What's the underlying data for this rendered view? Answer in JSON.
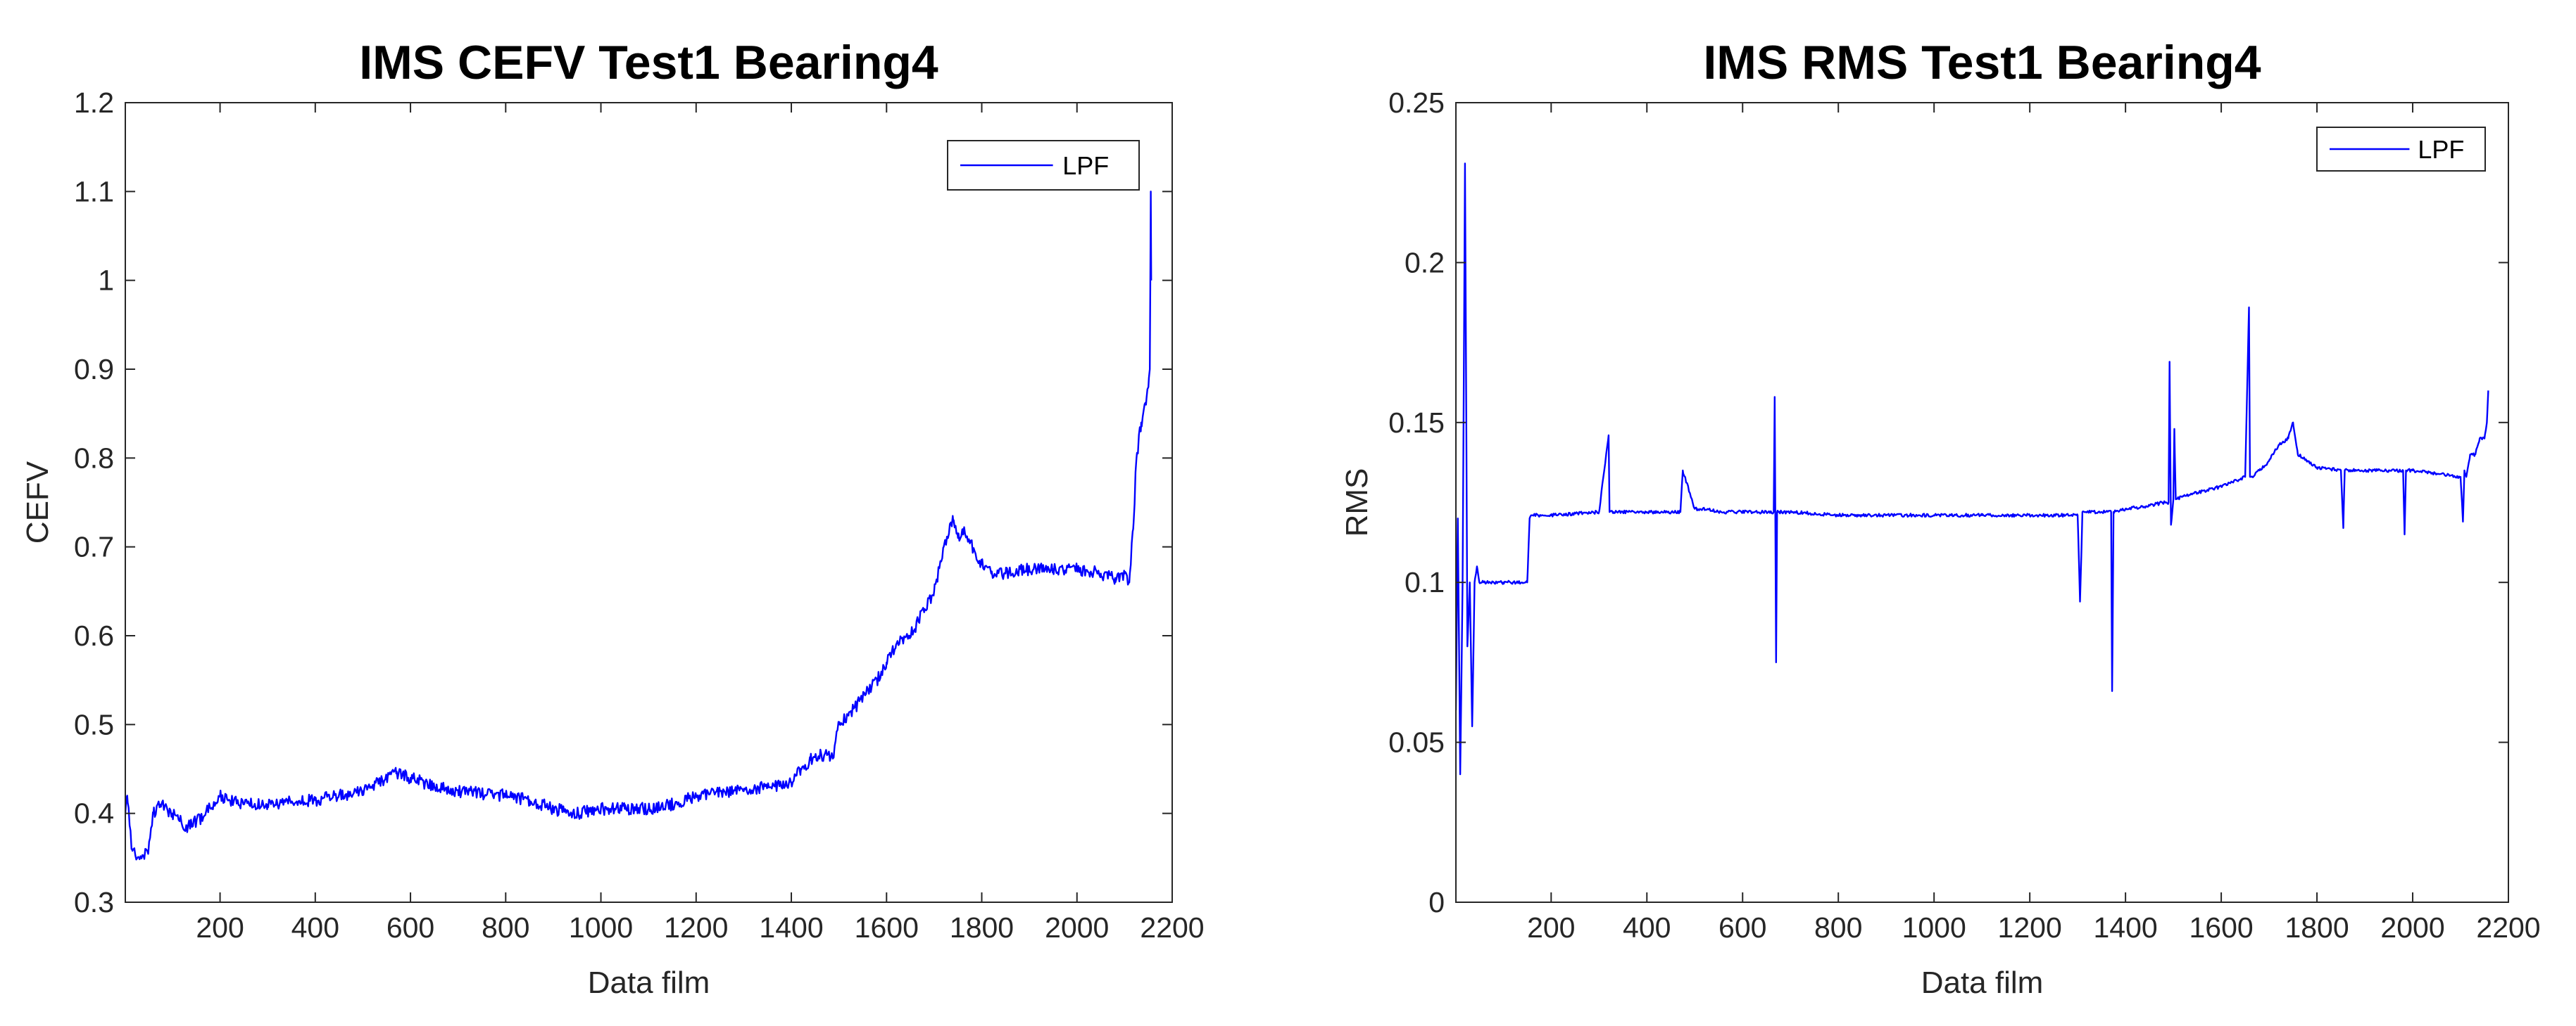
{
  "chart_data": [
    {
      "type": "line",
      "title": "IMS CEFV Test1 Bearing4",
      "xlabel": "Data film",
      "ylabel": "CEFV",
      "xlim": [
        1,
        2200
      ],
      "ylim": [
        0.3,
        1.2
      ],
      "xticks": [
        200,
        400,
        600,
        800,
        1000,
        1200,
        1400,
        1600,
        1800,
        2000,
        2200
      ],
      "yticks": [
        0.3,
        0.4,
        0.5,
        0.6,
        0.7,
        0.8,
        0.9,
        1,
        1.1,
        1.2
      ],
      "xtick_labels": [
        "200",
        "400",
        "600",
        "800",
        "1000",
        "1200",
        "1400",
        "1600",
        "1800",
        "2000",
        "2200"
      ],
      "ytick_labels": [
        "0.3",
        "0.4",
        "0.5",
        "0.6",
        "0.7",
        "0.8",
        "0.9",
        "1",
        "1.1",
        "1.2"
      ],
      "grid": false,
      "legend_position": "top-right",
      "series": [
        {
          "name": "LPF",
          "color": "#0000ff",
          "noise": 0.007,
          "x": [
            1,
            5,
            15,
            30,
            50,
            60,
            75,
            100,
            130,
            160,
            200,
            250,
            300,
            400,
            500,
            570,
            600,
            650,
            700,
            800,
            850,
            900,
            950,
            1000,
            1050,
            1100,
            1150,
            1200,
            1250,
            1300,
            1350,
            1400,
            1420,
            1440,
            1460,
            1480,
            1490,
            1500,
            1520,
            1550,
            1580,
            1600,
            1620,
            1650,
            1680,
            1700,
            1720,
            1740,
            1750,
            1760,
            1780,
            1800,
            1820,
            1850,
            1900,
            1950,
            2000,
            2050,
            2080,
            2100,
            2110,
            2118,
            2125,
            2135,
            2145,
            2150,
            2153,
            2155,
            2156
          ],
          "y": [
            0.4,
            0.42,
            0.36,
            0.35,
            0.36,
            0.4,
            0.41,
            0.4,
            0.385,
            0.395,
            0.42,
            0.41,
            0.41,
            0.415,
            0.425,
            0.445,
            0.44,
            0.43,
            0.425,
            0.42,
            0.415,
            0.405,
            0.4,
            0.405,
            0.405,
            0.405,
            0.41,
            0.42,
            0.425,
            0.425,
            0.43,
            0.435,
            0.45,
            0.46,
            0.465,
            0.465,
            0.47,
            0.5,
            0.51,
            0.53,
            0.55,
            0.57,
            0.59,
            0.6,
            0.63,
            0.65,
            0.7,
            0.73,
            0.71,
            0.72,
            0.7,
            0.68,
            0.67,
            0.67,
            0.675,
            0.675,
            0.675,
            0.67,
            0.665,
            0.67,
            0.66,
            0.72,
            0.8,
            0.84,
            0.86,
            0.88,
            0.9,
            1.1,
            1.0
          ]
        }
      ]
    },
    {
      "type": "line",
      "title": "IMS RMS Test1 Bearing4",
      "xlabel": "Data film",
      "ylabel": "RMS",
      "xlim": [
        1,
        2200
      ],
      "ylim": [
        0,
        0.25
      ],
      "xticks": [
        200,
        400,
        600,
        800,
        1000,
        1200,
        1400,
        1600,
        1800,
        2000,
        2200
      ],
      "yticks": [
        0,
        0.05,
        0.1,
        0.15,
        0.2,
        0.25
      ],
      "xtick_labels": [
        "200",
        "400",
        "600",
        "800",
        "1000",
        "1200",
        "1400",
        "1600",
        "1800",
        "2000",
        "2200"
      ],
      "ytick_labels": [
        "0",
        "0.05",
        "0.1",
        "0.15",
        "0.2",
        "0.25"
      ],
      "grid": false,
      "legend_position": "top-right",
      "series": [
        {
          "name": "LPF",
          "color": "#0000ff",
          "noise": 0.0005,
          "x": [
            1,
            5,
            10,
            15,
            20,
            25,
            30,
            35,
            40,
            45,
            50,
            60,
            80,
            100,
            120,
            150,
            155,
            160,
            200,
            300,
            320,
            322,
            330,
            400,
            470,
            475,
            500,
            520,
            550,
            600,
            665,
            667,
            670,
            672,
            675,
            700,
            800,
            900,
            1000,
            1100,
            1200,
            1250,
            1300,
            1305,
            1310,
            1350,
            1370,
            1372,
            1375,
            1400,
            1450,
            1480,
            1490,
            1492,
            1495,
            1500,
            1502,
            1505,
            1520,
            1550,
            1600,
            1650,
            1658,
            1660,
            1663,
            1680,
            1700,
            1720,
            1740,
            1750,
            1760,
            1780,
            1800,
            1850,
            1855,
            1858,
            1900,
            1950,
            1980,
            1983,
            1986,
            2000,
            2050,
            2100,
            2105,
            2108,
            2112,
            2120,
            2130,
            2140,
            2150,
            2155,
            2158
          ],
          "y": [
            0.06,
            0.12,
            0.04,
            0.1,
            0.231,
            0.08,
            0.1,
            0.055,
            0.1,
            0.105,
            0.1,
            0.1,
            0.1,
            0.1,
            0.1,
            0.1,
            0.12,
            0.121,
            0.121,
            0.122,
            0.146,
            0.122,
            0.122,
            0.122,
            0.122,
            0.135,
            0.123,
            0.123,
            0.122,
            0.122,
            0.122,
            0.158,
            0.075,
            0.122,
            0.122,
            0.122,
            0.121,
            0.121,
            0.121,
            0.121,
            0.121,
            0.121,
            0.121,
            0.094,
            0.122,
            0.122,
            0.122,
            0.066,
            0.122,
            0.123,
            0.124,
            0.125,
            0.125,
            0.169,
            0.118,
            0.126,
            0.148,
            0.126,
            0.127,
            0.128,
            0.13,
            0.133,
            0.186,
            0.133,
            0.133,
            0.135,
            0.138,
            0.143,
            0.145,
            0.15,
            0.14,
            0.138,
            0.136,
            0.135,
            0.117,
            0.135,
            0.135,
            0.135,
            0.135,
            0.115,
            0.135,
            0.135,
            0.134,
            0.133,
            0.119,
            0.135,
            0.133,
            0.14,
            0.14,
            0.145,
            0.145,
            0.15,
            0.16
          ]
        }
      ]
    }
  ]
}
